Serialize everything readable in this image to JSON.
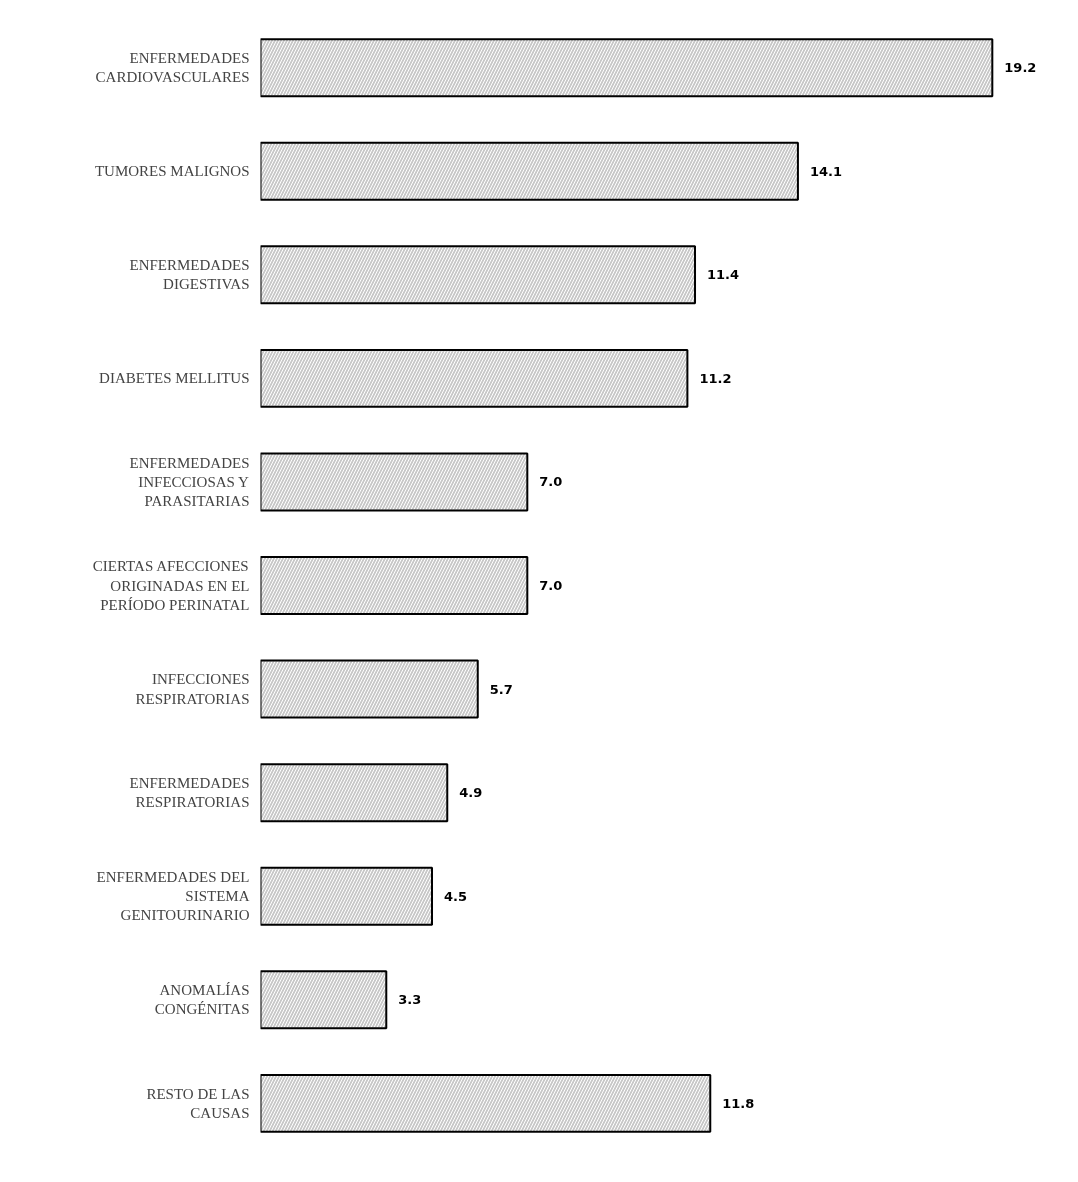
{
  "chart_data": {
    "type": "bar",
    "orientation": "horizontal",
    "categories": [
      "ENFERMEDADES CARDIOVASCULARES",
      "TUMORES MALIGNOS",
      "ENFERMEDADES DIGESTIVAS",
      "DIABETES MELLITUS",
      "ENFERMEDADES INFECCIOSAS Y PARASITARIAS",
      "CIERTAS AFECCIONES ORIGINADAS EN EL PERÍODO PERINATAL",
      "INFECCIONES RESPIRATORIAS",
      "ENFERMEDADES RESPIRATORIAS",
      "ENFERMEDADES DEL SISTEMA GENITOURINARIO",
      "ANOMALÍAS CONGÉNITAS",
      "RESTO DE LAS CAUSAS"
    ],
    "values": [
      19.2,
      14.1,
      11.4,
      11.2,
      7.0,
      7.0,
      5.7,
      4.9,
      4.5,
      3.3,
      11.8
    ],
    "value_labels": [
      "19.2",
      "14.1",
      "11.4",
      "11.2",
      "7.0",
      "7.0",
      "5.7",
      "4.9",
      "4.5",
      "3.3",
      "11.8"
    ],
    "color": "#c8c8c8",
    "grid": false
  }
}
